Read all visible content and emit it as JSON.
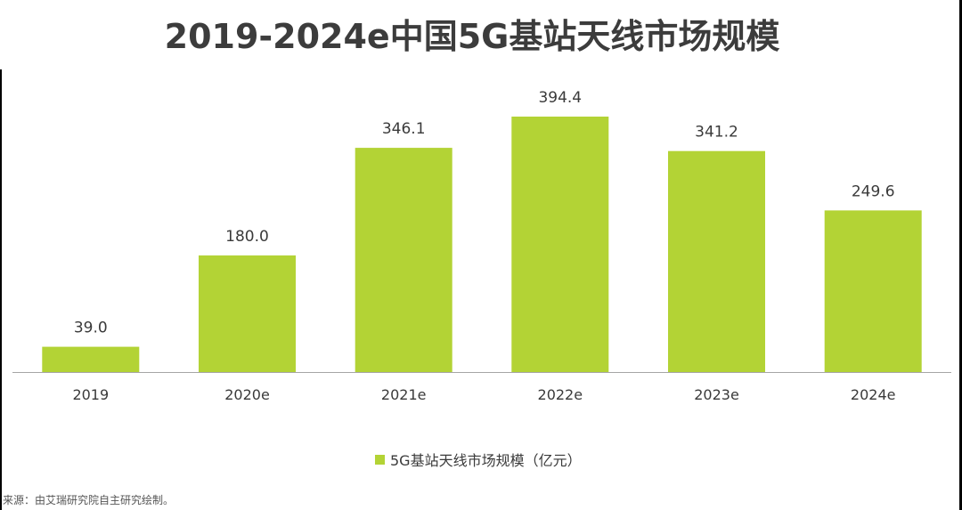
{
  "title": "2019-2024e中国5G基站天线市场规模",
  "source": "来源：由艾瑞研究院自主研究绘制。",
  "colors": {
    "bar": "#b3d335",
    "axis": "#a6a6a6"
  },
  "chart_data": {
    "type": "bar",
    "title": "2019-2024e中国5G基站天线市场规模",
    "categories": [
      "2019",
      "2020e",
      "2021e",
      "2022e",
      "2023e",
      "2024e"
    ],
    "series": [
      {
        "name": "5G基站天线市场规模（亿元）",
        "values": [
          39.0,
          180.0,
          346.1,
          394.4,
          341.2,
          249.6
        ],
        "labels": [
          "39.0",
          "180.0",
          "346.1",
          "394.4",
          "341.2",
          "249.6"
        ]
      }
    ],
    "ylim": [
      0,
      400
    ],
    "grid": false,
    "legend_position": "bottom"
  }
}
